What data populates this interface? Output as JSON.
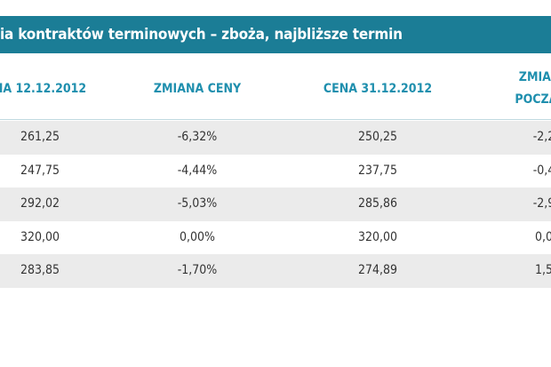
{
  "header": {
    "title": "ia kontraktów terminowych – zboża, najbliższe termin"
  },
  "table": {
    "columns": [
      "NA 12.12.2012",
      "ZMIANA CENY",
      "CENA 31.12.2012",
      [
        "ZMIANA",
        "POCZĄTK"
      ]
    ],
    "rows": [
      [
        "261,25",
        "-6,32%",
        "250,25",
        "-2,2"
      ],
      [
        "247,75",
        "-4,44%",
        "237,75",
        "-0,4"
      ],
      [
        "292,02",
        "-5,03%",
        "285,86",
        "-2,9"
      ],
      [
        "320,00",
        "0,00%",
        "320,00",
        "0,0"
      ],
      [
        "283,85",
        "-1,70%",
        "274,89",
        "1,5"
      ]
    ]
  }
}
